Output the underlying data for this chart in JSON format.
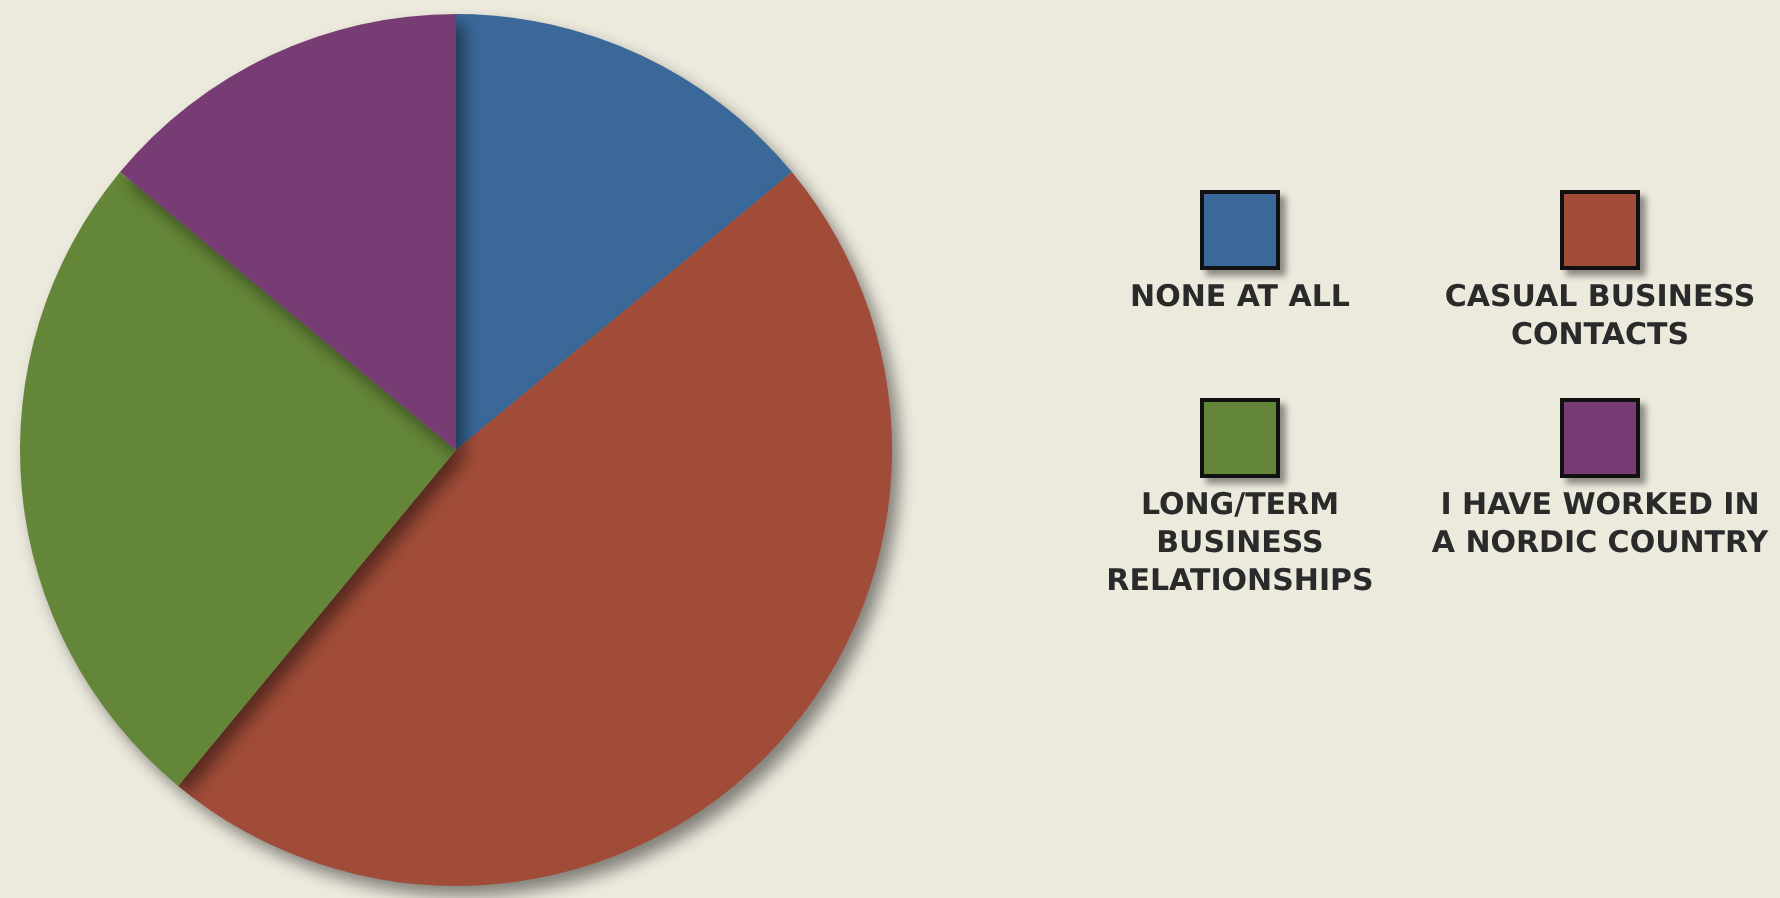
{
  "chart_data": {
    "type": "pie",
    "categories": [
      "NONE AT ALL",
      "CASUAL BUSINESS CONTACTS",
      "LONG/TERM BUSINESS RELATIONSHIPS",
      "I HAVE WORKED IN A NORDIC COUNTRY"
    ],
    "values": [
      14,
      47,
      25,
      14
    ],
    "colors": [
      "#3a6898",
      "#a04c38",
      "#648638",
      "#783c74"
    ],
    "legend": "right"
  }
}
